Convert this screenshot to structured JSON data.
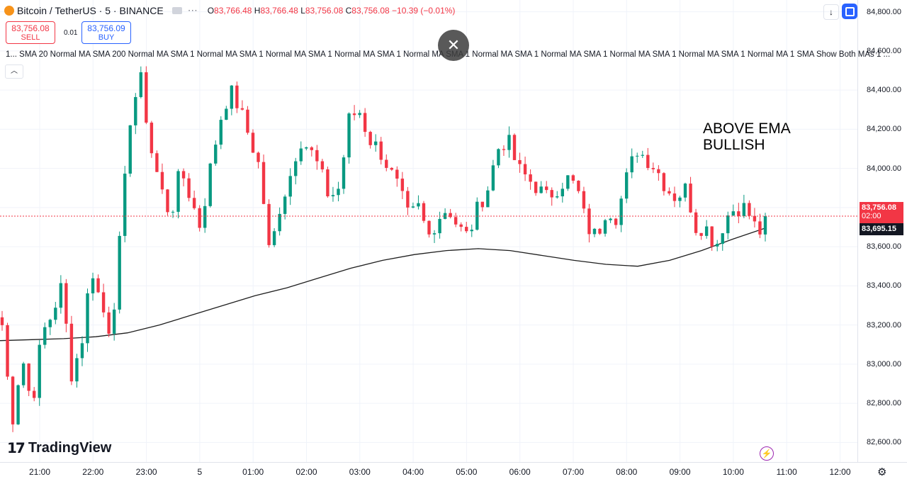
{
  "header": {
    "symbol": "Bitcoin / TetherUS · 5 · BINANCE",
    "open_label": "O",
    "open": "83,766.48",
    "high_label": "H",
    "high": "83,766.48",
    "low_label": "L",
    "low": "83,756.08",
    "close_label": "C",
    "close": "83,756.08",
    "change": "−10.39 (−0.01%)",
    "more": "⋯"
  },
  "trade": {
    "sell_price": "83,756.08",
    "sell_label": "SELL",
    "spread": "0.01",
    "buy_price": "83,756.09",
    "buy_label": "BUY"
  },
  "indicators_text": "1... SMA 20 Normal MA SMA 200 Normal MA SMA 1 Normal MA SMA 1 Normal MA SMA 1 Normal MA SMA 1 Normal MA SMA 1 Normal MA SMA 1 Normal MA SMA 1 Normal MA SMA 1 Normal MA SMA 1 Normal MA 1 SMA Show Both MAs 1 ...",
  "annotation": {
    "line1": "ABOVE EMA",
    "line2": "BULLISH"
  },
  "branding": {
    "logo": "TradingView"
  },
  "price_tags": {
    "last": "83,756.08",
    "countdown": "02:00",
    "ema": "83,695.15"
  },
  "colors": {
    "up": "#089981",
    "down": "#f23645",
    "ema": "#1e1e1e",
    "accent": "#2962ff"
  },
  "icons": [
    "bitcoin-icon",
    "eye-icon",
    "more-icon",
    "close-icon",
    "collapse-icon",
    "down-arrow-icon",
    "fullscreen-icon",
    "bolt-icon",
    "gear-icon"
  ],
  "chart_data": {
    "type": "candlestick",
    "ylim": [
      82500,
      84860
    ],
    "y_ticks": [
      "82,600.00",
      "82,800.00",
      "83,000.00",
      "83,200.00",
      "83,400.00",
      "83,600.00",
      "83,800.00",
      "84,000.00",
      "84,200.00",
      "84,400.00",
      "84,600.00",
      "84,800.00"
    ],
    "y_tick_values": [
      82600,
      82800,
      83000,
      83200,
      83400,
      83600,
      83800,
      84000,
      84200,
      84400,
      84600,
      84800
    ],
    "x_ticks": [
      "21:00",
      "22:00",
      "23:00",
      "5",
      "01:00",
      "02:00",
      "03:00",
      "04:00",
      "05:00",
      "06:00",
      "07:00",
      "08:00",
      "09:00",
      "10:00",
      "11:00",
      "12:00"
    ],
    "candle_count": 144,
    "close_path": [
      83200,
      82700,
      83050,
      82780,
      83150,
      83250,
      83400,
      82950,
      83100,
      83500,
      83300,
      83150,
      83700,
      84300,
      84450,
      84100,
      83900,
      83750,
      84000,
      83850,
      83700,
      84000,
      84250,
      84400,
      84300,
      84150,
      84000,
      83550,
      83800,
      83950,
      84150,
      84100,
      84000,
      83850,
      83900,
      84250,
      84300,
      84150,
      84100,
      84000,
      83900,
      83750,
      83800,
      83650,
      83750,
      83800,
      83700,
      83650,
      83800,
      83900,
      84100,
      84150,
      84000,
      83950,
      83900,
      83850,
      83900,
      83950,
      83900,
      83700,
      83650,
      83800,
      83750,
      83950,
      84100,
      84050,
      84000,
      83900,
      83850,
      83900,
      83700,
      83700,
      83600,
      83750,
      83800,
      83800,
      83700,
      83650
    ],
    "close_last": 83756.08,
    "ema": {
      "name": "",
      "values": [
        83120,
        83125,
        83130,
        83140,
        83160,
        83200,
        83250,
        83300,
        83350,
        83390,
        83440,
        83490,
        83530,
        83560,
        83580,
        83590,
        83580,
        83555,
        83530,
        83510,
        83500,
        83530,
        83580,
        83640,
        83695
      ]
    }
  }
}
